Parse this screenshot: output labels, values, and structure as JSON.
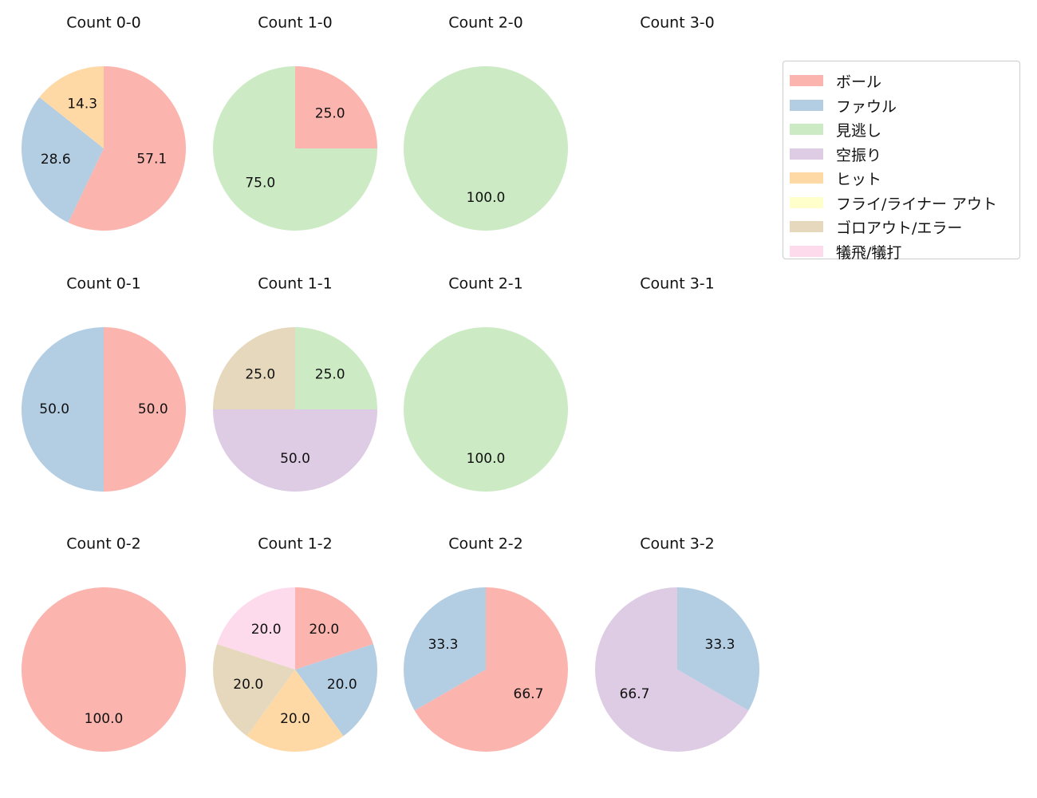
{
  "colors": {
    "ball": "#fbb4ae",
    "foul": "#b3cde3",
    "looking": "#ccebc5",
    "swinging": "#decbe4",
    "hit": "#fed9a6",
    "flyout": "#ffffcc",
    "groundout": "#e5d8bd",
    "sacrifice": "#fddaec"
  },
  "legend": [
    {
      "key": "ball",
      "label": "ボール"
    },
    {
      "key": "foul",
      "label": "ファウル"
    },
    {
      "key": "looking",
      "label": "見逃し"
    },
    {
      "key": "swinging",
      "label": "空振り"
    },
    {
      "key": "hit",
      "label": "ヒット"
    },
    {
      "key": "flyout",
      "label": "フライ/ライナー アウト"
    },
    {
      "key": "groundout",
      "label": "ゴロアウト/エラー"
    },
    {
      "key": "sacrifice",
      "label": "犠飛/犠打"
    }
  ],
  "chart_data": [
    {
      "type": "pie",
      "title": "Count 0-0",
      "row": 0,
      "col": 0,
      "slices": [
        {
          "key": "ball",
          "value": 57.1,
          "label": "57.1"
        },
        {
          "key": "foul",
          "value": 28.6,
          "label": "28.6"
        },
        {
          "key": "hit",
          "value": 14.3,
          "label": "14.3"
        }
      ]
    },
    {
      "type": "pie",
      "title": "Count 1-0",
      "row": 0,
      "col": 1,
      "slices": [
        {
          "key": "ball",
          "value": 25.0,
          "label": "25.0"
        },
        {
          "key": "looking",
          "value": 75.0,
          "label": "75.0"
        }
      ]
    },
    {
      "type": "pie",
      "title": "Count 2-0",
      "row": 0,
      "col": 2,
      "slices": [
        {
          "key": "looking",
          "value": 100.0,
          "label": "100.0"
        }
      ]
    },
    {
      "type": "pie",
      "title": "Count 3-0",
      "row": 0,
      "col": 3,
      "slices": []
    },
    {
      "type": "pie",
      "title": "Count 0-1",
      "row": 1,
      "col": 0,
      "slices": [
        {
          "key": "ball",
          "value": 50.0,
          "label": "50.0"
        },
        {
          "key": "foul",
          "value": 50.0,
          "label": "50.0"
        }
      ]
    },
    {
      "type": "pie",
      "title": "Count 1-1",
      "row": 1,
      "col": 1,
      "slices": [
        {
          "key": "looking",
          "value": 25.0,
          "label": "25.0"
        },
        {
          "key": "swinging",
          "value": 50.0,
          "label": "50.0"
        },
        {
          "key": "groundout",
          "value": 25.0,
          "label": "25.0"
        }
      ]
    },
    {
      "type": "pie",
      "title": "Count 2-1",
      "row": 1,
      "col": 2,
      "slices": [
        {
          "key": "looking",
          "value": 100.0,
          "label": "100.0"
        }
      ]
    },
    {
      "type": "pie",
      "title": "Count 3-1",
      "row": 1,
      "col": 3,
      "slices": []
    },
    {
      "type": "pie",
      "title": "Count 0-2",
      "row": 2,
      "col": 0,
      "slices": [
        {
          "key": "ball",
          "value": 100.0,
          "label": "100.0"
        }
      ]
    },
    {
      "type": "pie",
      "title": "Count 1-2",
      "row": 2,
      "col": 1,
      "slices": [
        {
          "key": "ball",
          "value": 20.0,
          "label": "20.0"
        },
        {
          "key": "foul",
          "value": 20.0,
          "label": "20.0"
        },
        {
          "key": "hit",
          "value": 20.0,
          "label": "20.0"
        },
        {
          "key": "groundout",
          "value": 20.0,
          "label": "20.0"
        },
        {
          "key": "sacrifice",
          "value": 20.0,
          "label": "20.0"
        }
      ]
    },
    {
      "type": "pie",
      "title": "Count 2-2",
      "row": 2,
      "col": 2,
      "slices": [
        {
          "key": "ball",
          "value": 66.7,
          "label": "66.7"
        },
        {
          "key": "foul",
          "value": 33.3,
          "label": "33.3"
        }
      ]
    },
    {
      "type": "pie",
      "title": "Count 3-2",
      "row": 2,
      "col": 3,
      "slices": [
        {
          "key": "foul",
          "value": 33.3,
          "label": "33.3"
        },
        {
          "key": "swinging",
          "value": 66.7,
          "label": "66.7"
        }
      ]
    }
  ]
}
